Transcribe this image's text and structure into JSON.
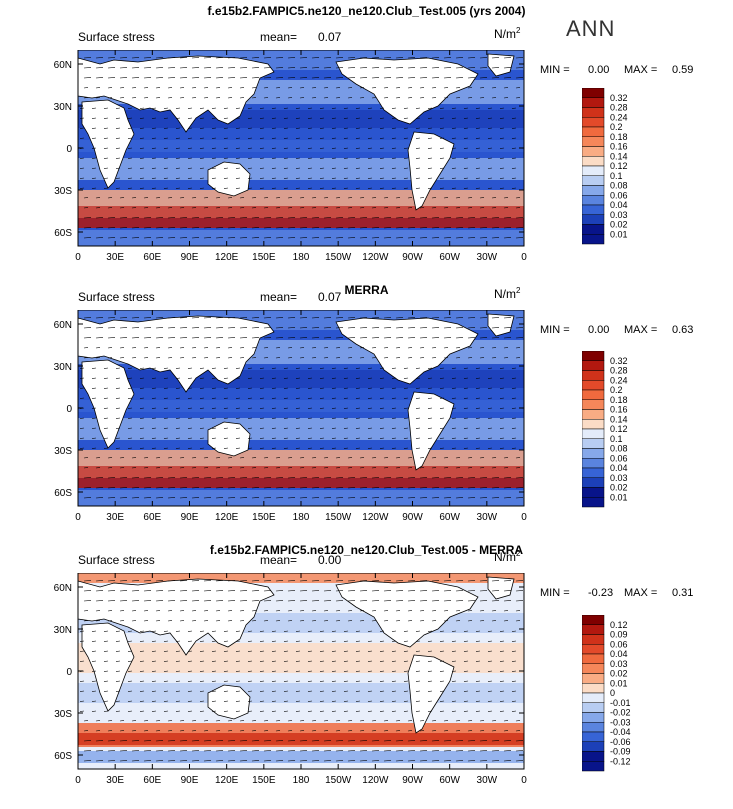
{
  "header": {
    "season": "ANN"
  },
  "chart_data": [
    {
      "type": "heatmap",
      "title": "f.e15b2.FAMPIC5.ne120_ne120.Club_Test.005 (yrs 2004)",
      "left_label": "Surface stress",
      "mean_label": "mean=",
      "mean_value": "0.07",
      "units": "N/m",
      "units_exp": "2",
      "min_label": "MIN =",
      "min_value": "0.00",
      "max_label": "MAX =",
      "max_value": "0.59",
      "colorbar_levels": [
        "0.32",
        "0.28",
        "0.24",
        "0.2",
        "0.18",
        "0.16",
        "0.14",
        "0.12",
        "0.1",
        "0.08",
        "0.06",
        "0.04",
        "0.03",
        "0.02",
        "0.01"
      ],
      "x_ticks": [
        "0",
        "30E",
        "60E",
        "90E",
        "120E",
        "150E",
        "180",
        "150W",
        "120W",
        "90W",
        "60W",
        "30W",
        "0"
      ],
      "y_ticks": [
        "60N",
        "30N",
        "0",
        "30S",
        "60S"
      ]
    },
    {
      "type": "heatmap",
      "title": "MERRA",
      "left_label": "Surface stress",
      "mean_label": "mean=",
      "mean_value": "0.07",
      "units": "N/m",
      "units_exp": "2",
      "min_label": "MIN =",
      "min_value": "0.00",
      "max_label": "MAX =",
      "max_value": "0.63",
      "colorbar_levels": [
        "0.32",
        "0.28",
        "0.24",
        "0.2",
        "0.18",
        "0.16",
        "0.14",
        "0.12",
        "0.1",
        "0.08",
        "0.06",
        "0.04",
        "0.03",
        "0.02",
        "0.01"
      ],
      "x_ticks": [
        "0",
        "30E",
        "60E",
        "90E",
        "120E",
        "150E",
        "180",
        "150W",
        "120W",
        "90W",
        "60W",
        "30W",
        "0"
      ],
      "y_ticks": [
        "60N",
        "30N",
        "0",
        "30S",
        "60S"
      ]
    },
    {
      "type": "heatmap",
      "title": "f.e15b2.FAMPIC5.ne120_ne120.Club_Test.005 - MERRA",
      "left_label": "Surface stress",
      "mean_label": "mean=",
      "mean_value": "0.00",
      "units": "N/m",
      "units_exp": "2",
      "min_label": "MIN =",
      "min_value": "-0.23",
      "max_label": "MAX =",
      "max_value": "0.31",
      "colorbar_levels": [
        "0.12",
        "0.09",
        "0.06",
        "0.04",
        "0.03",
        "0.02",
        "0.01",
        "0",
        "-0.01",
        "-0.02",
        "-0.03",
        "-0.04",
        "-0.06",
        "-0.09",
        "-0.12"
      ],
      "x_ticks": [
        "0",
        "30E",
        "60E",
        "90E",
        "120E",
        "150E",
        "180",
        "150W",
        "120W",
        "90W",
        "60W",
        "30W",
        "0"
      ],
      "y_ticks": [
        "60N",
        "30N",
        "0",
        "30S",
        "60S"
      ]
    }
  ],
  "colors": {
    "seq": [
      "#7f0000",
      "#b2180f",
      "#d0321a",
      "#e34a2a",
      "#f06a3e",
      "#f5875a",
      "#f9ac84",
      "#fbdcc6",
      "#e4ecfa",
      "#b8cdf2",
      "#86a8ea",
      "#5a84df",
      "#3764d6",
      "#1c40b8",
      "#08148a"
    ],
    "ocean_mid": "#2a55cf",
    "land": "#ffffff"
  }
}
